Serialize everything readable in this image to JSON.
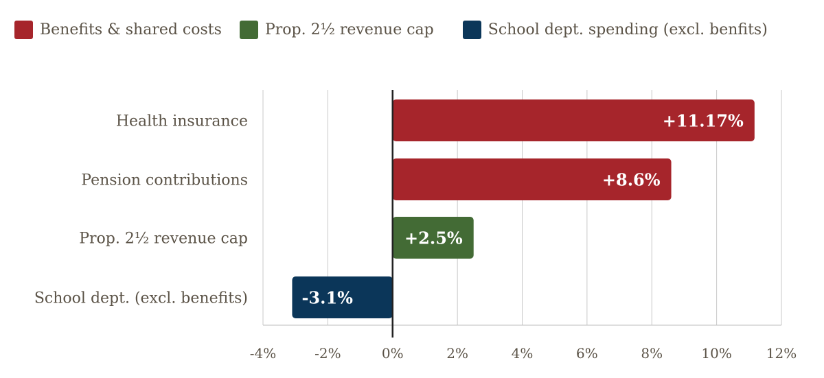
{
  "chart_data": {
    "type": "bar",
    "orientation": "horizontal",
    "categories": [
      "Health insurance",
      "Pension contributions",
      "Prop. 2½ revenue cap",
      "School dept. (excl. benefits)"
    ],
    "values": [
      11.17,
      8.6,
      2.5,
      -3.1
    ],
    "data_labels": [
      "+11.17%",
      "+8.6%",
      "+2.5%",
      "-3.1%"
    ],
    "bar_groups": [
      0,
      0,
      1,
      2
    ],
    "legend": [
      {
        "name": "Benefits & shared costs",
        "color": "#A6252B"
      },
      {
        "name": "Prop. 2½ revenue cap",
        "color": "#436B35"
      },
      {
        "name": "School dept. spending (excl. benfits)",
        "color": "#0B3659"
      }
    ],
    "legend_placement": "top-left",
    "xlim": [
      -4,
      12
    ],
    "xticks": [
      -4,
      -2,
      0,
      2,
      4,
      6,
      8,
      10,
      12
    ],
    "xtick_labels": [
      "-4%",
      "-2%",
      "0%",
      "2%",
      "4%",
      "6%",
      "8%",
      "10%",
      "12%"
    ],
    "grid": "vertical",
    "title": "",
    "xlabel": "",
    "ylabel": ""
  }
}
